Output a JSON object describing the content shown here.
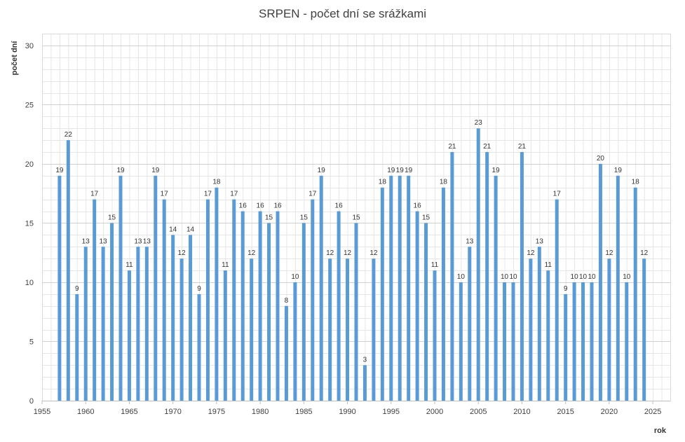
{
  "chart_data": {
    "type": "bar",
    "title": "SRPEN - počet dní se srážkami",
    "xlabel": "rok",
    "ylabel": "počet dní",
    "xlim": [
      1955,
      2027
    ],
    "ylim": [
      0,
      31
    ],
    "x_ticks": [
      1955,
      1960,
      1965,
      1970,
      1975,
      1980,
      1985,
      1990,
      1995,
      2000,
      2005,
      2010,
      2015,
      2020,
      2025
    ],
    "y_ticks": [
      0,
      5,
      10,
      15,
      20,
      25,
      30
    ],
    "grid": "on",
    "bar_color": "#5b9bd5",
    "x": [
      1957,
      1958,
      1959,
      1960,
      1961,
      1962,
      1963,
      1964,
      1965,
      1966,
      1967,
      1968,
      1969,
      1970,
      1971,
      1972,
      1973,
      1974,
      1975,
      1976,
      1977,
      1978,
      1979,
      1980,
      1981,
      1982,
      1983,
      1984,
      1985,
      1986,
      1987,
      1988,
      1989,
      1990,
      1991,
      1992,
      1993,
      1994,
      1995,
      1996,
      1997,
      1998,
      1999,
      2000,
      2001,
      2002,
      2003,
      2004,
      2005,
      2006,
      2007,
      2008,
      2009,
      2010,
      2011,
      2012,
      2013,
      2014,
      2015,
      2016,
      2017,
      2018,
      2019,
      2020,
      2021,
      2022,
      2023,
      2024
    ],
    "values": [
      19,
      22,
      9,
      13,
      17,
      13,
      15,
      19,
      11,
      13,
      13,
      19,
      17,
      14,
      12,
      14,
      9,
      17,
      18,
      11,
      17,
      16,
      12,
      16,
      15,
      16,
      8,
      10,
      15,
      17,
      19,
      12,
      16,
      12,
      15,
      3,
      12,
      18,
      19,
      19,
      19,
      16,
      15,
      11,
      18,
      21,
      10,
      13,
      23,
      21,
      19,
      10,
      10,
      21,
      12,
      13,
      11,
      17,
      9,
      10,
      10,
      10,
      20,
      12,
      19,
      10,
      18,
      12
    ]
  }
}
